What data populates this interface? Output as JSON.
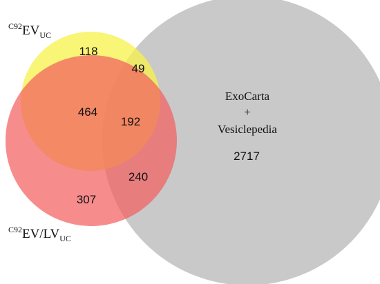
{
  "sets": {
    "ev_uc": {
      "label_sup": "C92",
      "label_main": "EV",
      "label_sub": "UC",
      "color": "#f5f24a"
    },
    "ev_lv_uc": {
      "label_sup": "C92",
      "label_main": "EV/LV",
      "label_sub": "UC",
      "color": "#f25f5f"
    },
    "databases": {
      "label_line1": "ExoCarta",
      "label_line2": "+",
      "label_line3": "Vesiclepedia",
      "color": "#c4c4c4"
    }
  },
  "regions": {
    "ev_uc_only": "118",
    "ev_uc_and_databases": "49",
    "ev_uc_and_ev_lv_uc": "464",
    "all_three": "192",
    "ev_lv_uc_and_databases": "240",
    "ev_lv_uc_only": "307",
    "databases_only": "2717"
  }
}
